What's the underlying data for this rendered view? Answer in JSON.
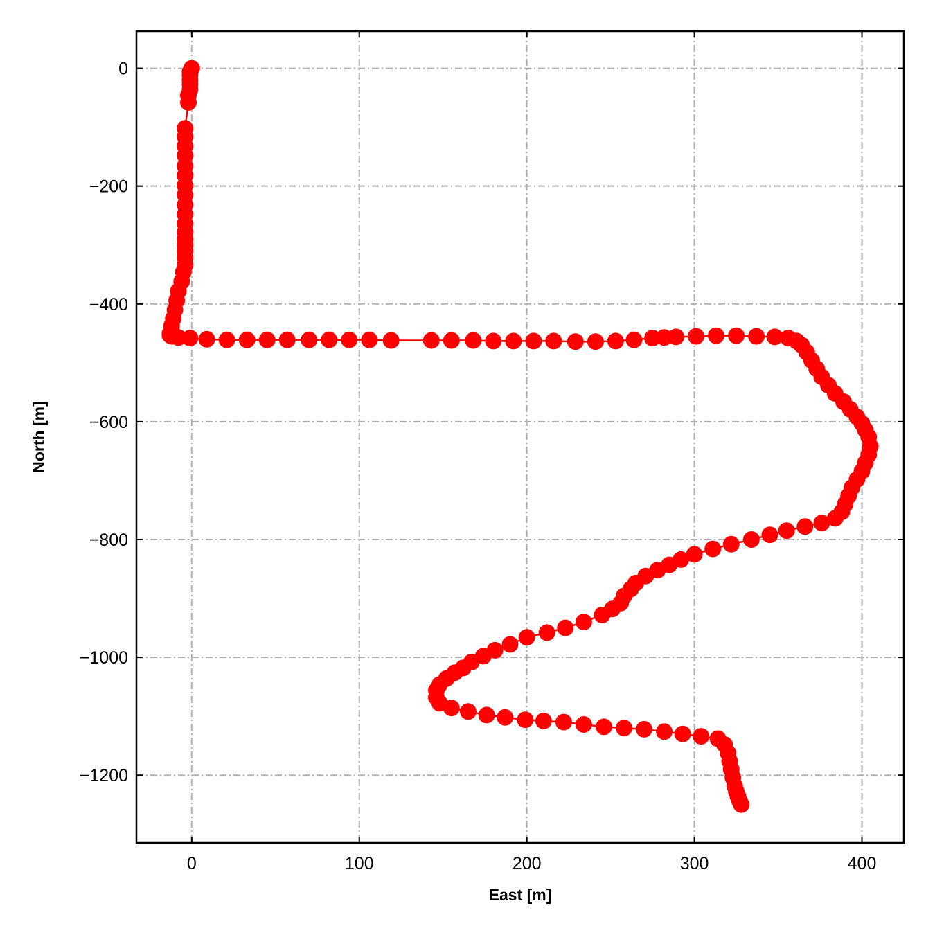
{
  "chart_data": {
    "type": "line",
    "title": "",
    "xlabel": "East [m]",
    "ylabel": "North [m]",
    "xlim": [
      -33,
      425
    ],
    "ylim": [
      -1315,
      63
    ],
    "xticks": [
      0,
      100,
      200,
      300,
      400
    ],
    "yticks": [
      0,
      -200,
      -400,
      -600,
      -800,
      -1000,
      -1200
    ],
    "xtick_labels": [
      "0",
      "100",
      "200",
      "300",
      "400"
    ],
    "ytick_labels": [
      "0",
      "−200",
      "−400",
      "−600",
      "−800",
      "−1000",
      "−1200"
    ],
    "grid": true,
    "grid_style": "dash-dot",
    "legend": "none",
    "series": [
      {
        "color": "#ff0000",
        "marker": "circle",
        "x": [
          0,
          -1,
          -1,
          -1,
          -1,
          -1,
          -2,
          -2,
          -4,
          -4,
          -4,
          -4,
          -4,
          -4,
          -4,
          -4,
          -4,
          -4,
          -4,
          -4,
          -4,
          -4,
          -4,
          -4,
          -4,
          -5,
          -6,
          -8,
          -9,
          -10,
          -11,
          -12,
          -12,
          -13,
          -13,
          -13,
          -12,
          -8,
          -1,
          9,
          21,
          33,
          45,
          57,
          70,
          82,
          94,
          106,
          119,
          143,
          155,
          168,
          180,
          192,
          204,
          216,
          229,
          241,
          253,
          264,
          275,
          282,
          289,
          301,
          313,
          325,
          337,
          348,
          356,
          361,
          364,
          367,
          370,
          373,
          376,
          380,
          384,
          389,
          393,
          397,
          400,
          402,
          404,
          405,
          404,
          402,
          400,
          397,
          394,
          392,
          390,
          388,
          384,
          376,
          366,
          355,
          345,
          334,
          322,
          311,
          300,
          292,
          285,
          278,
          271,
          265,
          262,
          258,
          256,
          251,
          245,
          234,
          223,
          212,
          200,
          190,
          181,
          174,
          167,
          162,
          157,
          152,
          148,
          146,
          146,
          148,
          155,
          165,
          176,
          187,
          199,
          210,
          222,
          234,
          246,
          258,
          270,
          282,
          293,
          304,
          314,
          318,
          320,
          321,
          322,
          323,
          324,
          325,
          326,
          327,
          328
        ],
        "y": [
          0,
          -6,
          -12,
          -20,
          -27,
          -36,
          -46,
          -58,
          -102,
          -116,
          -132,
          -148,
          -166,
          -182,
          -199,
          -215,
          -232,
          -248,
          -264,
          -278,
          -290,
          -300,
          -311,
          -322,
          -334,
          -346,
          -362,
          -378,
          -394,
          -410,
          -425,
          -437,
          -446,
          -450,
          -452,
          -453,
          -455,
          -457,
          -458,
          -460,
          -461,
          -461,
          -461,
          -461,
          -461,
          -461,
          -461,
          -461,
          -462,
          -462,
          -462,
          -462,
          -463,
          -463,
          -463,
          -463,
          -464,
          -464,
          -463,
          -461,
          -458,
          -457,
          -456,
          -455,
          -454,
          -454,
          -455,
          -456,
          -458,
          -463,
          -470,
          -482,
          -496,
          -510,
          -524,
          -538,
          -552,
          -566,
          -579,
          -592,
          -603,
          -614,
          -626,
          -642,
          -656,
          -670,
          -684,
          -698,
          -712,
          -726,
          -740,
          -753,
          -764,
          -772,
          -778,
          -785,
          -792,
          -800,
          -808,
          -816,
          -825,
          -834,
          -843,
          -852,
          -862,
          -874,
          -884,
          -896,
          -908,
          -918,
          -928,
          -940,
          -950,
          -958,
          -966,
          -978,
          -988,
          -998,
          -1008,
          -1018,
          -1026,
          -1036,
          -1046,
          -1056,
          -1068,
          -1078,
          -1086,
          -1092,
          -1098,
          -1102,
          -1106,
          -1108,
          -1110,
          -1114,
          -1118,
          -1120,
          -1122,
          -1126,
          -1130,
          -1134,
          -1138,
          -1148,
          -1162,
          -1176,
          -1190,
          -1204,
          -1218,
          -1228,
          -1236,
          -1244,
          -1250
        ]
      }
    ]
  }
}
